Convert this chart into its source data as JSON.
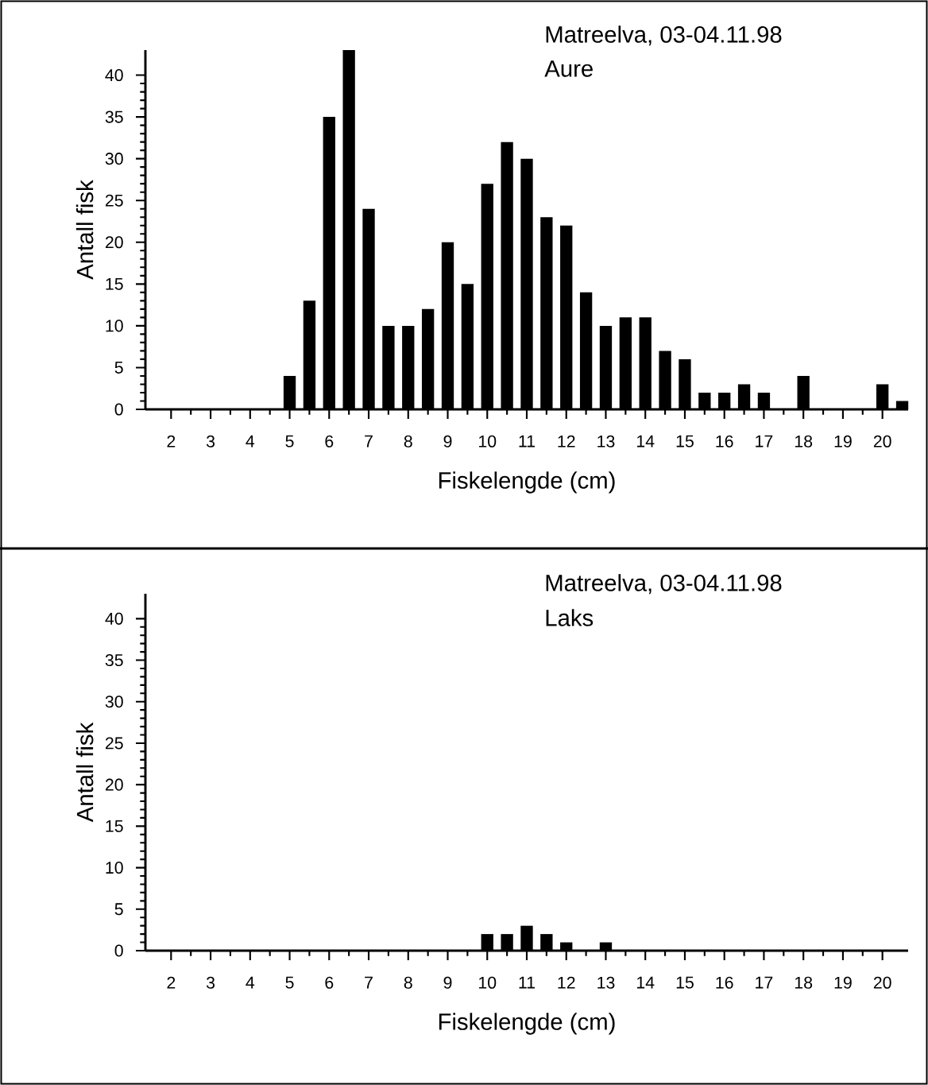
{
  "chart_data": [
    {
      "type": "bar",
      "title": "Matreelva, 03-04.11.98",
      "subtitle": "Aure",
      "xlabel": "Fiskelengde (cm)",
      "ylabel": "Antall fisk",
      "color": "#000000",
      "x": [
        5,
        5.5,
        6,
        6.5,
        7,
        7.5,
        8,
        8.5,
        9,
        9.5,
        10,
        10.5,
        11,
        11.5,
        12,
        12.5,
        13,
        13.5,
        14,
        14.5,
        15,
        15.5,
        16,
        16.5,
        17,
        18,
        20,
        20.5
      ],
      "values": [
        4,
        13,
        35,
        43,
        24,
        10,
        10,
        12,
        20,
        15,
        27,
        32,
        30,
        23,
        22,
        14,
        10,
        11,
        11,
        7,
        6,
        2,
        2,
        3,
        2,
        4,
        3,
        1
      ],
      "xlim": [
        1.35,
        20.65
      ],
      "ylim": [
        0,
        43
      ],
      "xticks": [
        2,
        3,
        4,
        5,
        6,
        7,
        8,
        9,
        10,
        11,
        12,
        13,
        14,
        15,
        16,
        17,
        18,
        19,
        20
      ],
      "yticks": [
        0,
        5,
        10,
        15,
        20,
        25,
        30,
        35,
        40
      ]
    },
    {
      "type": "bar",
      "title": "Matreelva, 03-04.11.98",
      "subtitle": "Laks",
      "xlabel": "Fiskelengde (cm)",
      "ylabel": "Antall fisk",
      "color": "#000000",
      "x": [
        10,
        10.5,
        11,
        11.5,
        12,
        13
      ],
      "values": [
        2,
        2,
        3,
        2,
        1,
        1
      ],
      "xlim": [
        1.35,
        20.65
      ],
      "ylim": [
        0,
        43
      ],
      "xticks": [
        2,
        3,
        4,
        5,
        6,
        7,
        8,
        9,
        10,
        11,
        12,
        13,
        14,
        15,
        16,
        17,
        18,
        19,
        20
      ],
      "yticks": [
        0,
        5,
        10,
        15,
        20,
        25,
        30,
        35,
        40
      ]
    }
  ]
}
